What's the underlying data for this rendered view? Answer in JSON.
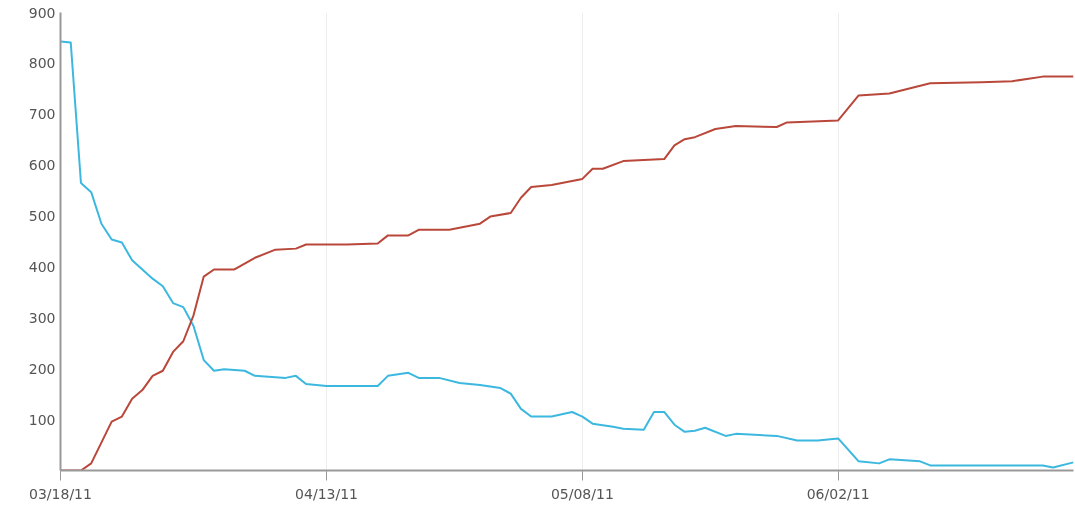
{
  "chart_data": {
    "type": "line",
    "xlim": [
      "2011-03-18",
      "2011-06-25"
    ],
    "ylim": [
      0,
      900
    ],
    "xticks": [
      {
        "value": "2011-03-18",
        "label": "03/18/11"
      },
      {
        "value": "2011-04-13",
        "label": "04/13/11"
      },
      {
        "value": "2011-05-08",
        "label": "05/08/11"
      },
      {
        "value": "2011-06-02",
        "label": "06/02/11"
      }
    ],
    "yticks": [
      100,
      200,
      300,
      400,
      500,
      600,
      700,
      800,
      900
    ],
    "grid": "x",
    "marker": "none",
    "line_style": "solid",
    "series": [
      {
        "color": "#3cb8e0",
        "x": [
          "2011-03-18",
          "2011-03-19",
          "2011-03-20",
          "2011-03-21",
          "2011-03-22",
          "2011-03-23",
          "2011-03-24",
          "2011-03-25",
          "2011-03-27",
          "2011-03-28",
          "2011-03-29",
          "2011-03-30",
          "2011-03-31",
          "2011-04-01",
          "2011-04-02",
          "2011-04-03",
          "2011-04-05",
          "2011-04-06",
          "2011-04-09",
          "2011-04-10",
          "2011-04-11",
          "2011-04-12",
          "2011-04-13",
          "2011-04-18",
          "2011-04-19",
          "2011-04-21",
          "2011-04-22",
          "2011-04-24",
          "2011-04-26",
          "2011-04-28",
          "2011-04-30",
          "2011-05-01",
          "2011-05-02",
          "2011-05-03",
          "2011-05-05",
          "2011-05-07",
          "2011-05-08",
          "2011-05-09",
          "2011-05-11",
          "2011-05-12",
          "2011-05-14",
          "2011-05-15",
          "2011-05-16",
          "2011-05-17",
          "2011-05-18",
          "2011-05-19",
          "2011-05-20",
          "2011-05-22",
          "2011-05-23",
          "2011-05-27",
          "2011-05-29",
          "2011-05-31",
          "2011-06-02",
          "2011-06-04",
          "2011-06-06",
          "2011-06-07",
          "2011-06-10",
          "2011-06-11",
          "2011-06-15",
          "2011-06-22",
          "2011-06-23",
          "2011-06-25"
        ],
        "values": [
          843,
          841,
          565,
          547,
          485,
          454,
          448,
          413,
          377,
          362,
          329,
          321,
          284,
          217,
          196,
          199,
          196,
          186,
          182,
          186,
          170,
          168,
          166,
          166,
          186,
          192,
          182,
          182,
          172,
          168,
          162,
          151,
          121,
          106,
          106,
          115,
          106,
          92,
          86,
          82,
          80,
          115,
          115,
          90,
          76,
          78,
          84,
          68,
          72,
          68,
          59,
          59,
          63,
          18,
          14,
          22,
          18,
          10,
          10,
          10,
          6,
          16
        ]
      },
      {
        "color": "#b9473a",
        "x": [
          "2011-03-18",
          "2011-03-20",
          "2011-03-21",
          "2011-03-23",
          "2011-03-24",
          "2011-03-25",
          "2011-03-26",
          "2011-03-27",
          "2011-03-28",
          "2011-03-29",
          "2011-03-30",
          "2011-03-31",
          "2011-04-01",
          "2011-04-02",
          "2011-04-04",
          "2011-04-06",
          "2011-04-08",
          "2011-04-10",
          "2011-04-11",
          "2011-04-15",
          "2011-04-18",
          "2011-04-19",
          "2011-04-21",
          "2011-04-22",
          "2011-04-25",
          "2011-04-28",
          "2011-04-29",
          "2011-05-01",
          "2011-05-02",
          "2011-05-03",
          "2011-05-05",
          "2011-05-08",
          "2011-05-09",
          "2011-05-10",
          "2011-05-12",
          "2011-05-16",
          "2011-05-17",
          "2011-05-18",
          "2011-05-19",
          "2011-05-21",
          "2011-05-23",
          "2011-05-27",
          "2011-05-28",
          "2011-06-02",
          "2011-06-04",
          "2011-06-07",
          "2011-06-11",
          "2011-06-16",
          "2011-06-19",
          "2011-06-22",
          "2011-06-25"
        ],
        "values": [
          0,
          0,
          14,
          96,
          106,
          141,
          158,
          186,
          196,
          233,
          254,
          305,
          381,
          395,
          395,
          418,
          434,
          436,
          444,
          444,
          446,
          462,
          462,
          473,
          473,
          485,
          499,
          506,
          536,
          557,
          561,
          573,
          593,
          593,
          608,
          612,
          639,
          651,
          655,
          671,
          677,
          675,
          684,
          688,
          737,
          741,
          761,
          763,
          765,
          774,
          774
        ]
      }
    ]
  }
}
